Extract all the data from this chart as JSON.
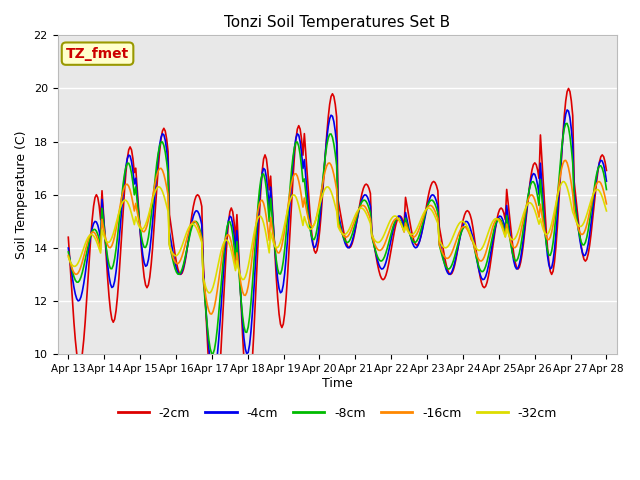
{
  "title": "Tonzi Soil Temperatures Set B",
  "xlabel": "Time",
  "ylabel": "Soil Temperature (C)",
  "ylim": [
    10,
    22
  ],
  "yticks": [
    10,
    12,
    14,
    16,
    18,
    20,
    22
  ],
  "annotation_label": "TZ_fmet",
  "annotation_color": "#cc0000",
  "annotation_bg": "#ffffcc",
  "bg_color": "#e8e8e8",
  "legend_entries": [
    "-2cm",
    "-4cm",
    "-8cm",
    "-16cm",
    "-32cm"
  ],
  "line_colors": [
    "#dd0000",
    "#0000ee",
    "#00bb00",
    "#ff8800",
    "#dddd00"
  ],
  "x_tick_labels": [
    "Apr 13",
    "Apr 14",
    "Apr 15",
    "Apr 16",
    "Apr 17",
    "Apr 18",
    "Apr 19",
    "Apr 20",
    "Apr 21",
    "Apr 22",
    "Apr 23",
    "Apr 24",
    "Apr 25",
    "Apr 26",
    "Apr 27",
    "Apr 28"
  ],
  "n_days": 16,
  "pts_per_day": 24,
  "base_temp": 14.5,
  "day_amplitudes_2cm": [
    3.2,
    3.3,
    3.0,
    1.5,
    4.0,
    4.5,
    3.8,
    3.0,
    1.2,
    1.2,
    1.2,
    1.2,
    1.5,
    2.0,
    3.5,
    2.0
  ],
  "day_baselines_2cm": [
    12.8,
    14.5,
    15.5,
    14.5,
    11.5,
    13.0,
    14.8,
    16.8,
    15.2,
    14.0,
    15.3,
    14.2,
    14.0,
    15.2,
    16.5,
    15.5
  ],
  "day_amplitudes_4cm": [
    1.5,
    2.5,
    2.5,
    1.2,
    3.0,
    3.5,
    3.0,
    2.5,
    1.0,
    1.0,
    1.0,
    1.0,
    1.2,
    1.8,
    3.0,
    1.8
  ],
  "day_baselines_4cm": [
    13.5,
    15.0,
    15.8,
    14.2,
    12.2,
    13.5,
    15.3,
    16.5,
    15.0,
    14.2,
    15.0,
    14.0,
    14.0,
    15.0,
    16.2,
    15.5
  ],
  "day_amplitudes_8cm": [
    1.0,
    2.0,
    2.0,
    1.0,
    2.5,
    3.0,
    2.5,
    2.0,
    0.8,
    0.8,
    0.8,
    0.8,
    1.0,
    1.5,
    2.5,
    1.5
  ],
  "day_baselines_8cm": [
    13.7,
    15.2,
    16.0,
    14.0,
    12.5,
    13.8,
    15.5,
    16.3,
    15.0,
    14.3,
    15.0,
    14.0,
    14.1,
    15.0,
    16.2,
    15.6
  ],
  "day_amplitudes_16cm": [
    0.8,
    1.2,
    1.2,
    0.8,
    1.5,
    1.8,
    1.5,
    1.2,
    0.6,
    0.6,
    0.6,
    0.6,
    0.8,
    1.0,
    1.5,
    1.0
  ],
  "day_baselines_16cm": [
    13.8,
    15.2,
    15.8,
    14.2,
    13.0,
    14.0,
    15.3,
    16.0,
    15.0,
    14.5,
    15.0,
    14.2,
    14.3,
    15.0,
    15.8,
    15.5
  ],
  "day_amplitudes_32cm": [
    0.6,
    0.8,
    0.8,
    0.6,
    1.0,
    1.2,
    1.0,
    0.8,
    0.5,
    0.5,
    0.5,
    0.5,
    0.6,
    0.7,
    1.0,
    0.7
  ],
  "day_baselines_32cm": [
    13.9,
    15.0,
    15.5,
    14.3,
    13.3,
    14.0,
    15.0,
    15.5,
    15.0,
    14.7,
    15.0,
    14.5,
    14.5,
    15.0,
    15.5,
    15.5
  ]
}
